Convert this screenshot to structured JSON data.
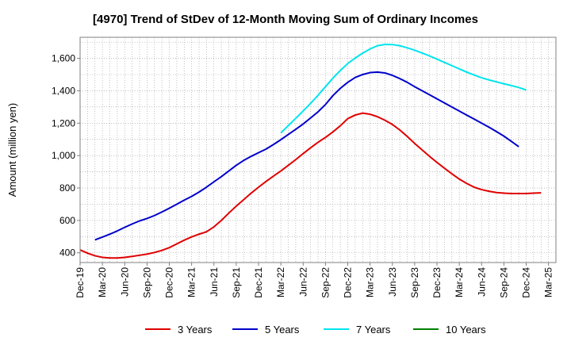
{
  "chart_data": {
    "type": "line",
    "title": "[4970]  Trend of StDev of 12-Month Moving Sum of Ordinary Incomes",
    "xlabel": "",
    "ylabel": "Amount (million yen)",
    "ylim": [
      340,
      1730
    ],
    "yticks": [
      400,
      600,
      800,
      1000,
      1200,
      1400,
      1600
    ],
    "ytick_labels": [
      "400",
      "600",
      "800",
      "1,000",
      "1,200",
      "1,400",
      "1,600"
    ],
    "x_start_month": "2019-12",
    "x_months": 64,
    "xtick_labels": [
      "Dec-19",
      "Mar-20",
      "Jun-20",
      "Sep-20",
      "Dec-20",
      "Mar-21",
      "Jun-21",
      "Sep-21",
      "Dec-21",
      "Mar-22",
      "Jun-22",
      "Sep-22",
      "Dec-22",
      "Mar-23",
      "Jun-23",
      "Sep-23",
      "Dec-23",
      "Mar-24",
      "Jun-24",
      "Sep-24",
      "Dec-24",
      "Mar-25"
    ],
    "grid": true,
    "legend_position": "bottom",
    "series": [
      {
        "name": "3 Years",
        "color": "#e00000",
        "start_index": 0,
        "values": [
          418,
          398,
          382,
          372,
          368,
          368,
          372,
          378,
          385,
          392,
          402,
          415,
          432,
          455,
          478,
          498,
          515,
          530,
          560,
          600,
          645,
          688,
          728,
          768,
          805,
          840,
          873,
          905,
          940,
          975,
          1012,
          1048,
          1082,
          1112,
          1146,
          1184,
          1228,
          1250,
          1262,
          1255,
          1240,
          1218,
          1192,
          1158,
          1118,
          1075,
          1035,
          995,
          958,
          922,
          888,
          855,
          828,
          805,
          790,
          780,
          772,
          768,
          766,
          766,
          766,
          768,
          770
        ]
      },
      {
        "name": "5 Years",
        "color": "#0000cc",
        "start_index": 2,
        "values": [
          480,
          497,
          515,
          535,
          557,
          578,
          597,
          612,
          630,
          652,
          675,
          700,
          725,
          748,
          775,
          805,
          838,
          870,
          905,
          940,
          970,
          995,
          1018,
          1040,
          1068,
          1098,
          1130,
          1162,
          1195,
          1232,
          1270,
          1315,
          1370,
          1415,
          1452,
          1482,
          1500,
          1512,
          1515,
          1510,
          1495,
          1475,
          1452,
          1425,
          1400,
          1375,
          1350,
          1325,
          1300,
          1275,
          1250,
          1225,
          1200,
          1175,
          1148,
          1120,
          1088,
          1055
        ]
      },
      {
        "name": "7 Years",
        "color": "#00e5ee",
        "start_index": 27,
        "values": [
          1140,
          1185,
          1230,
          1275,
          1322,
          1372,
          1425,
          1478,
          1525,
          1568,
          1602,
          1632,
          1658,
          1678,
          1686,
          1685,
          1678,
          1665,
          1650,
          1633,
          1615,
          1595,
          1575,
          1555,
          1535,
          1515,
          1497,
          1480,
          1467,
          1455,
          1443,
          1432,
          1420,
          1405
        ]
      },
      {
        "name": "10 Years",
        "color": "#008000",
        "start_index": 0,
        "values": []
      }
    ]
  }
}
